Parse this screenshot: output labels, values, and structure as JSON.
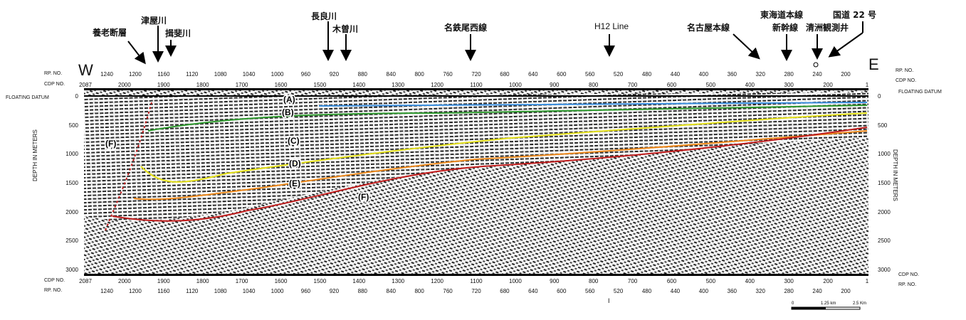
{
  "annotations": [
    {
      "id": "yoro-fault",
      "label": "養老断層"
    },
    {
      "id": "tsuya",
      "label": "津屋川"
    },
    {
      "id": "ibi",
      "label": "揖斐川"
    },
    {
      "id": "nagara",
      "label": "長良川"
    },
    {
      "id": "kiso",
      "label": "木曽川"
    },
    {
      "id": "meitetsu",
      "label": "名鉄尾西線"
    },
    {
      "id": "h12",
      "label": "H12 Line"
    },
    {
      "id": "nagoya",
      "label": "名古屋本線"
    },
    {
      "id": "tokaido",
      "label": "東海道本線"
    },
    {
      "id": "shinkansen",
      "label": "新幹線"
    },
    {
      "id": "kiyosu",
      "label": "清洲観測井"
    },
    {
      "id": "route22",
      "label": "国道 22 号"
    }
  ],
  "directions": {
    "west": "W",
    "east": "E"
  },
  "header": {
    "rp_label": "RP. NO.",
    "cdp_label": "CDP NO.",
    "floating_datum": "FLOATING DATUM",
    "depth_axis": "DEPTH IN METERS"
  },
  "rp_ticks": [
    "1240",
    "1200",
    "1160",
    "1120",
    "1080",
    "1040",
    "1000",
    "960",
    "920",
    "880",
    "840",
    "800",
    "760",
    "720",
    "680",
    "640",
    "600",
    "560",
    "520",
    "480",
    "440",
    "400",
    "360",
    "320",
    "280",
    "240",
    "200"
  ],
  "cdp_ticks": [
    "2087",
    "2000",
    "1900",
    "1800",
    "1700",
    "1600",
    "1500",
    "1400",
    "1300",
    "1200",
    "1100",
    "1000",
    "900",
    "800",
    "700",
    "600",
    "500",
    "400",
    "300",
    "200",
    "1"
  ],
  "depth_ticks": [
    {
      "v": 0,
      "t": "0"
    },
    {
      "v": 500,
      "t": "500"
    },
    {
      "v": 1000,
      "t": "1000"
    },
    {
      "v": 1500,
      "t": "1500"
    },
    {
      "v": 2000,
      "t": "2000"
    },
    {
      "v": 2500,
      "t": "2500"
    },
    {
      "v": 3000,
      "t": "3000"
    }
  ],
  "horizons": [
    {
      "id": "A",
      "label": "(A)",
      "color": "#3a8fe0"
    },
    {
      "id": "B",
      "label": "(B)",
      "color": "#2e9a2e"
    },
    {
      "id": "C",
      "label": "(C)",
      "color": "#e6e21a"
    },
    {
      "id": "D",
      "label": "(D)",
      "color": "#f08a1c"
    },
    {
      "id": "E",
      "label": "(E)",
      "color": "#c01c1c"
    }
  ],
  "fault_labels": [
    "(F)",
    "(F)"
  ],
  "bottom_mark": "I",
  "scale_bar": {
    "labels": [
      "0",
      "1.25 km",
      "2.5 Km"
    ]
  }
}
